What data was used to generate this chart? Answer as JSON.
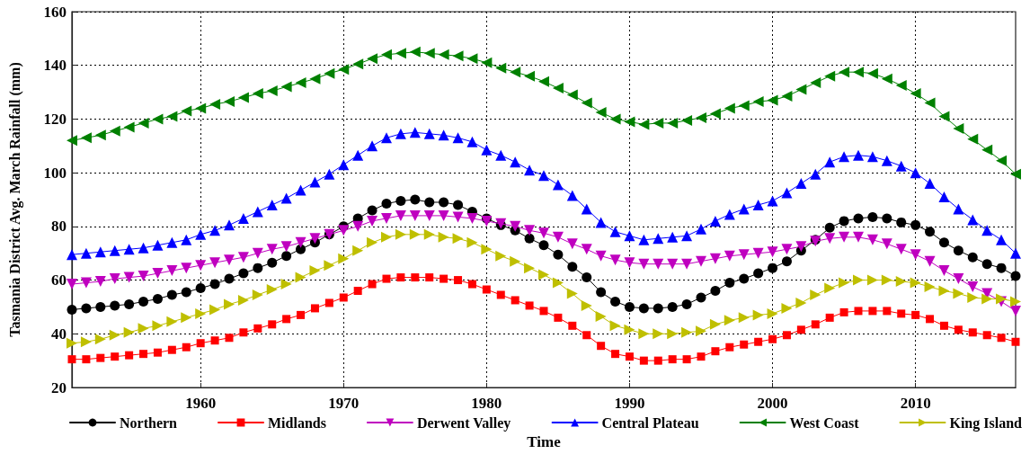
{
  "chart_data": {
    "type": "line",
    "xlabel": "Time",
    "ylabel": "Tasmania District Avg. March Rainfall (mm)",
    "x": [
      1951,
      1952,
      1953,
      1954,
      1955,
      1956,
      1957,
      1958,
      1959,
      1960,
      1961,
      1962,
      1963,
      1964,
      1965,
      1966,
      1967,
      1968,
      1969,
      1970,
      1971,
      1972,
      1973,
      1974,
      1975,
      1976,
      1977,
      1978,
      1979,
      1980,
      1981,
      1982,
      1983,
      1984,
      1985,
      1986,
      1987,
      1988,
      1989,
      1990,
      1991,
      1992,
      1993,
      1994,
      1995,
      1996,
      1997,
      1998,
      1999,
      2000,
      2001,
      2002,
      2003,
      2004,
      2005,
      2006,
      2007,
      2008,
      2009,
      2010,
      2011,
      2012,
      2013,
      2014,
      2015,
      2016,
      2017
    ],
    "xlim": [
      1951,
      2017
    ],
    "xticks": [
      1960,
      1970,
      1980,
      1990,
      2000,
      2010
    ],
    "ylim": [
      20,
      160
    ],
    "yticks": [
      20,
      40,
      60,
      80,
      100,
      120,
      140,
      160
    ],
    "grid": true,
    "legend": "bottom",
    "line_style": "solid",
    "series": [
      {
        "name": "Northern",
        "color": "#000000",
        "marker": "circle",
        "values": [
          49,
          49.5,
          50,
          50.5,
          51,
          52,
          53,
          54.5,
          55.5,
          57,
          58.5,
          60.5,
          62.5,
          64.5,
          66.5,
          69,
          71.5,
          74,
          77,
          80,
          83,
          86,
          88.5,
          89.5,
          90,
          89,
          89,
          88,
          85.5,
          83,
          80.5,
          78.5,
          75.5,
          73,
          69.5,
          65,
          61,
          55.5,
          52,
          50,
          49.5,
          49.5,
          50,
          51,
          53.5,
          56,
          59,
          60.5,
          62.5,
          64.5,
          67,
          71,
          75,
          79.5,
          82,
          83,
          83.5,
          83,
          81.5,
          80.5,
          78,
          74,
          71,
          68.5,
          66,
          64.5,
          61.5
        ]
      },
      {
        "name": "Midlands",
        "color": "#ff0000",
        "marker": "square",
        "values": [
          30.5,
          30.5,
          31,
          31.5,
          32,
          32.5,
          33,
          34,
          35,
          36.5,
          37.5,
          38.5,
          40.5,
          42,
          43.5,
          45.5,
          47,
          49.5,
          51.5,
          53.5,
          56,
          58.5,
          60.5,
          61,
          61,
          61,
          60.5,
          60,
          58.5,
          56.5,
          54.5,
          52.5,
          50.5,
          48.5,
          46,
          43,
          39.5,
          35.5,
          32.5,
          31.5,
          30,
          30,
          30.5,
          30.5,
          31.5,
          33.5,
          35,
          36,
          37,
          38,
          39.5,
          41.5,
          43.5,
          46,
          48,
          48.5,
          48.5,
          48.5,
          47.5,
          47,
          45.5,
          43,
          41.5,
          40.5,
          39.5,
          38.5,
          37
        ]
      },
      {
        "name": "Derwent Valley",
        "color": "#bf00bf",
        "marker": "triangle-down",
        "values": [
          58.5,
          59,
          59.5,
          60.5,
          61,
          61.5,
          62.5,
          63.5,
          64.5,
          65.5,
          66.5,
          67.5,
          68.5,
          70,
          71.5,
          72.5,
          74,
          75.5,
          77,
          78.5,
          80,
          82,
          83,
          84,
          84,
          84,
          84,
          83.5,
          83,
          82,
          81,
          80,
          78.5,
          77.5,
          76,
          73.5,
          71.5,
          69,
          67.5,
          66.5,
          66,
          66,
          66,
          66,
          67,
          68,
          69,
          69.5,
          70,
          70.5,
          71.5,
          72.5,
          74.5,
          75.5,
          76,
          76,
          75,
          73.5,
          71.5,
          69.5,
          67,
          63.5,
          60.5,
          57.5,
          55,
          52,
          48.5
        ]
      },
      {
        "name": "Central Plateau",
        "color": "#0000ff",
        "marker": "triangle",
        "values": [
          69.5,
          70,
          70.5,
          71,
          71.5,
          72,
          73,
          74,
          75,
          77,
          78.5,
          80.5,
          83,
          85.5,
          88,
          90.5,
          93.5,
          96.5,
          99.5,
          103,
          106.5,
          110,
          113,
          114.5,
          115,
          114.5,
          114,
          113,
          111.5,
          108.5,
          106.5,
          104,
          101,
          99,
          95.5,
          91.5,
          86.5,
          81.5,
          78,
          76.5,
          75,
          75.5,
          76,
          76.5,
          79,
          82,
          84.5,
          86.5,
          88,
          89.5,
          92.5,
          96,
          99.5,
          104,
          106,
          106.5,
          106,
          104.5,
          102.5,
          100,
          96,
          91,
          86.5,
          82.5,
          78.5,
          75,
          70
        ]
      },
      {
        "name": "West Coast",
        "color": "#008000",
        "marker": "triangle-left",
        "values": [
          112,
          113,
          114,
          115.5,
          117,
          118.5,
          120,
          121,
          123,
          124,
          125.5,
          126.5,
          128,
          129.5,
          130.5,
          132,
          133.5,
          135,
          137,
          138.5,
          140.5,
          142.5,
          144,
          144.5,
          145,
          144.5,
          144,
          143.5,
          142.5,
          141,
          139,
          137.5,
          136,
          134,
          131.5,
          129,
          126,
          122.5,
          120,
          119,
          118,
          118.5,
          118.5,
          119.5,
          120.5,
          122,
          124,
          125,
          126.5,
          127,
          128.5,
          131,
          133.5,
          136,
          137.5,
          137.5,
          137,
          135,
          132.5,
          129.5,
          126,
          121,
          116.5,
          112.5,
          108.5,
          104.5,
          99.5
        ]
      },
      {
        "name": "King Island",
        "color": "#bfbf00",
        "marker": "triangle-right",
        "values": [
          36.5,
          37,
          38,
          39.5,
          40.5,
          42,
          43,
          44.5,
          46,
          47.5,
          49,
          51,
          52.5,
          54.5,
          56.5,
          58.5,
          61,
          63.5,
          65.5,
          68,
          71,
          74,
          76,
          77,
          77,
          77,
          76,
          75.5,
          74,
          71.5,
          69,
          67,
          64.5,
          62,
          59,
          55,
          50.5,
          46.5,
          43,
          41.5,
          40,
          40,
          40,
          40.5,
          41,
          43.5,
          45,
          46,
          47,
          47.5,
          49.5,
          51.5,
          54.5,
          57,
          59,
          60,
          60,
          60,
          59.5,
          59,
          57.5,
          56,
          55,
          53.5,
          53,
          53,
          52
        ]
      }
    ]
  }
}
